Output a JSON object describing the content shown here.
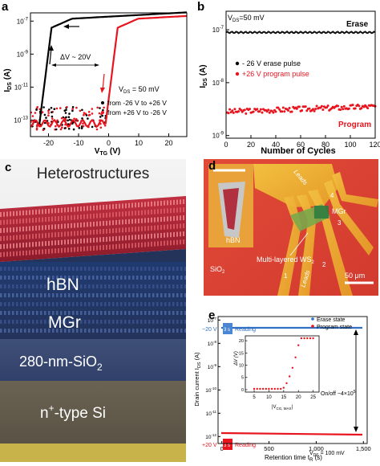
{
  "panel_labels": {
    "a": "a",
    "b": "b",
    "c": "c",
    "d": "d",
    "e": "e"
  },
  "panel_a": {
    "ylabel": "I",
    "ylabel_sub": "DS",
    "ylabel_unit": " (A)",
    "xlabel": "V",
    "xlabel_sub": "TG",
    "xlabel_unit": " (V)",
    "yticks": [
      {
        "exp": "-7",
        "v": -7
      },
      {
        "exp": "-9",
        "v": -9
      },
      {
        "exp": "-11",
        "v": -11
      },
      {
        "exp": "-13",
        "v": -13
      }
    ],
    "xticks": [
      "-20",
      "-10",
      "0",
      "10",
      "20"
    ],
    "annotation": "ΔV ~ 20V",
    "vds": "V",
    "vds_sub": "DS",
    "vds_val": " = 50 mV",
    "legend": [
      "from -26 V to +26 V",
      "from +26 V to -26 V"
    ],
    "colors": {
      "fwd": "#000000",
      "bwd": "#e8141e"
    }
  },
  "panel_b": {
    "vds": "V",
    "vds_sub": "DS",
    "vds_val": "=50 mV",
    "ylabel": "I",
    "ylabel_sub": "DS",
    "ylabel_unit": " (A)",
    "xlabel": "Number of Cycles",
    "yticks": [
      {
        "exp": "-7",
        "v": -7
      },
      {
        "exp": "-8",
        "v": -8
      },
      {
        "exp": "-9",
        "v": -9
      }
    ],
    "xticks": [
      "0",
      "20",
      "40",
      "60",
      "80",
      "100",
      "120"
    ],
    "erase_label": "Erase",
    "program_label": "Program",
    "legend": [
      "- 26 V erase pulse",
      "+26 V program pulse"
    ]
  },
  "panel_c": {
    "title": "Heterostructures",
    "hbn": "hBN",
    "mgr": "MGr",
    "sio2": "280-nm-SiO",
    "sio2_sub": "2",
    "si_pre": "n",
    "si_sup": "+",
    "si_post": "-type Si"
  },
  "panel_d": {
    "labels": {
      "leads_top": "Leads",
      "mgr": "MGr",
      "hbn": "hBN",
      "ws2": "Multi-layered WS",
      "ws2_sub": "2",
      "sio2": "SiO",
      "sio2_sub": "2",
      "leads_bottom": "Leads",
      "scale": "50 μm",
      "n1": "1",
      "n2": "2",
      "n3": "3",
      "n4": "4"
    }
  },
  "panel_e": {
    "ylabel": "Drain current I",
    "ylabel_sub": "DS",
    "ylabel_unit": " (A)",
    "xlabel": "Retention time t",
    "xlabel_sub": "R",
    "xlabel_unit": " (s)",
    "yticks": [
      {
        "exp": "-7",
        "v": -7
      },
      {
        "exp": "-8",
        "v": -8
      },
      {
        "exp": "-9",
        "v": -9
      },
      {
        "exp": "-10",
        "v": -10
      },
      {
        "exp": "-11",
        "v": -11
      },
      {
        "exp": "-12",
        "v": -12
      }
    ],
    "xticks": [
      "0",
      "500",
      "1,000",
      "1,500"
    ],
    "legend": [
      "Erase state",
      "Program state"
    ],
    "minus20": "−20 V",
    "plus20": "+20 V",
    "reading": "Reading",
    "three_s": "3 s",
    "onoff": "On/off ~4×10",
    "onoff_exp": "5",
    "vds": "V",
    "vds_sub": "DS",
    "vds_val": " = 100 mV",
    "inset": {
      "ylabel": "ΔV (V)",
      "xlabel": "|V",
      "xlabel_sub": "CG, MAX",
      "xlabel_end": "|",
      "xticks": [
        "5",
        "10",
        "15",
        "20",
        "25"
      ],
      "yticks": [
        "0",
        "5",
        "10",
        "15",
        "20"
      ]
    },
    "colors": {
      "erase": "#2f6fc4",
      "program": "#e8141e"
    }
  }
}
